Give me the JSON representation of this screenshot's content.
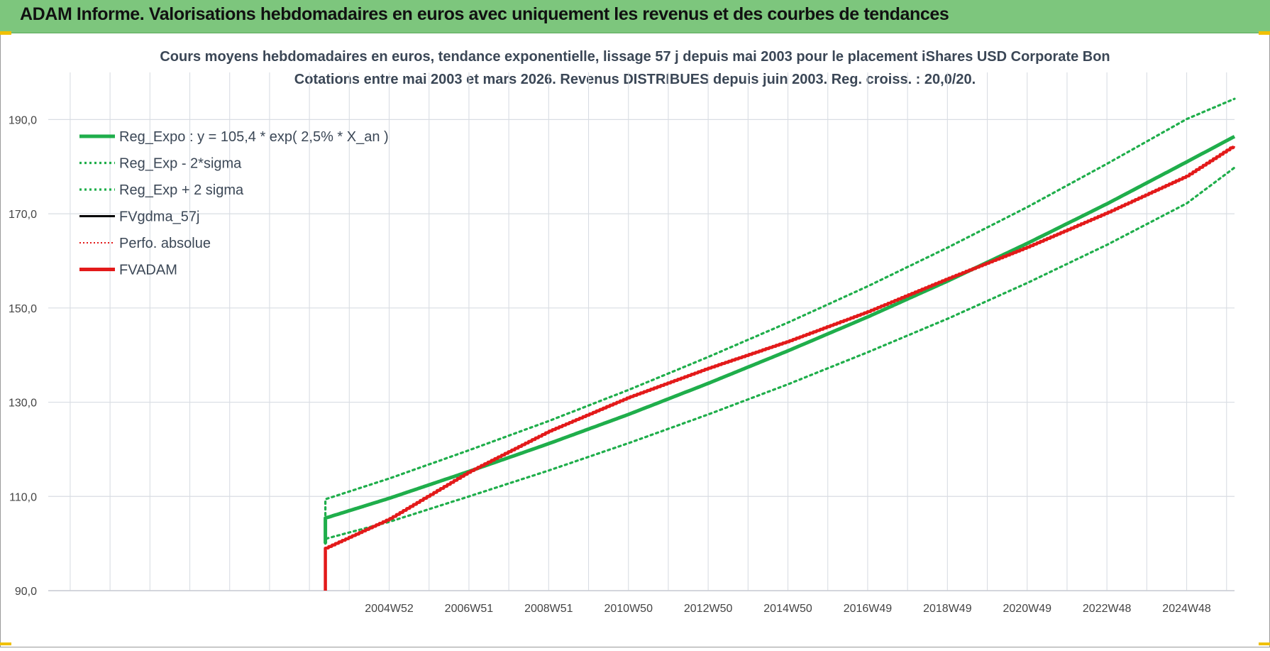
{
  "banner": {
    "title": "ADAM Informe. Valorisations hebdomadaires en euros avec uniquement les revenus et des courbes de tendances"
  },
  "colors": {
    "banner_bg": "#7dc67d",
    "trend": "#1fae4b",
    "sigma": "#1fae4b",
    "fvadam": "#e31a1a",
    "perfo": "#e31a1a",
    "gdma": "#000000",
    "grid": "#d9dde3",
    "text": "#3b4756"
  },
  "chart_data": {
    "type": "line",
    "title": "Cours moyens hebdomadaires en euros, tendance exponentielle, lissage 57 j depuis mai 2003 pour le placement iShares USD Corporate Bon",
    "subtitle": "Cotations entre mai 2003 et mars 2026. Revenus DISTRIBUES depuis juin 2003. Reg. croiss. : 20,0/20.",
    "xlabel": "",
    "ylabel": "",
    "ylim": [
      90,
      200
    ],
    "yticks": [
      "90,0",
      "110,0",
      "130,0",
      "150,0",
      "170,0",
      "190,0"
    ],
    "ytick_values": [
      90,
      110,
      130,
      150,
      170,
      190
    ],
    "xlim": [
      1996.45,
      2026.2
    ],
    "xticks": [
      "2004W52",
      "2006W51",
      "2008W51",
      "2010W50",
      "2012W50",
      "2014W50",
      "2016W49",
      "2018W49",
      "2020W49",
      "2022W48",
      "2024W48"
    ],
    "xtick_values": [
      2005.0,
      2007.0,
      2009.0,
      2011.0,
      2013.0,
      2015.0,
      2017.0,
      2019.0,
      2021.0,
      2023.0,
      2025.0
    ],
    "grid": true,
    "legend_position": "top-left",
    "legend": [
      {
        "label": "Reg_Expo : y = 105,4 * exp( 2,5% *  X_an )",
        "style": "solid-thick",
        "color": "#1fae4b"
      },
      {
        "label": "Reg_Exp - 2*sigma",
        "style": "dotted",
        "color": "#1fae4b"
      },
      {
        "label": "Reg_Exp + 2 sigma",
        "style": "dotted",
        "color": "#1fae4b"
      },
      {
        "label": "FVgdma_57j",
        "style": "solid",
        "color": "#000000"
      },
      {
        "label": "Perfo. absolue",
        "style": "dotted-thin",
        "color": "#e31a1a"
      },
      {
        "label": "FVADAM",
        "style": "solid-thick",
        "color": "#e31a1a"
      }
    ],
    "series": [
      {
        "name": "Reg_Expo : y = 105,4 * exp( 2,5% *  X_an )",
        "x": [
          2003.4,
          2005,
          2007,
          2009,
          2011,
          2013,
          2015,
          2017,
          2019,
          2021,
          2023,
          2025,
          2026.2
        ],
        "y": [
          105.4,
          109.6,
          115.3,
          121.2,
          127.4,
          134.0,
          140.9,
          148.1,
          155.7,
          163.7,
          172.1,
          181.0,
          186.4
        ]
      },
      {
        "name": "Reg_Exp + 2 sigma",
        "x": [
          2003.4,
          2005,
          2007,
          2009,
          2011,
          2013,
          2015,
          2017,
          2019,
          2021,
          2023,
          2025,
          2026.2
        ],
        "y": [
          109.4,
          113.8,
          119.8,
          126.0,
          132.6,
          139.6,
          146.9,
          154.6,
          162.8,
          171.4,
          180.6,
          190.1,
          194.4
        ]
      },
      {
        "name": "Reg_Exp - 2*sigma",
        "x": [
          2003.4,
          2005,
          2007,
          2009,
          2011,
          2013,
          2015,
          2017,
          2019,
          2021,
          2023,
          2025,
          2026.2
        ],
        "y": [
          101.0,
          104.6,
          110.0,
          115.5,
          121.3,
          127.4,
          133.8,
          140.6,
          147.7,
          155.3,
          163.4,
          172.2,
          179.8
        ]
      },
      {
        "name": "FVADAM",
        "x": [
          2003.4,
          2005,
          2007,
          2009,
          2011,
          2013,
          2015,
          2017,
          2019,
          2021,
          2023,
          2025,
          2026.2
        ],
        "y": [
          99.0,
          105.2,
          115.2,
          123.8,
          131.0,
          137.2,
          142.9,
          149.2,
          156.2,
          162.9,
          170.2,
          178.0,
          184.5
        ]
      }
    ]
  }
}
